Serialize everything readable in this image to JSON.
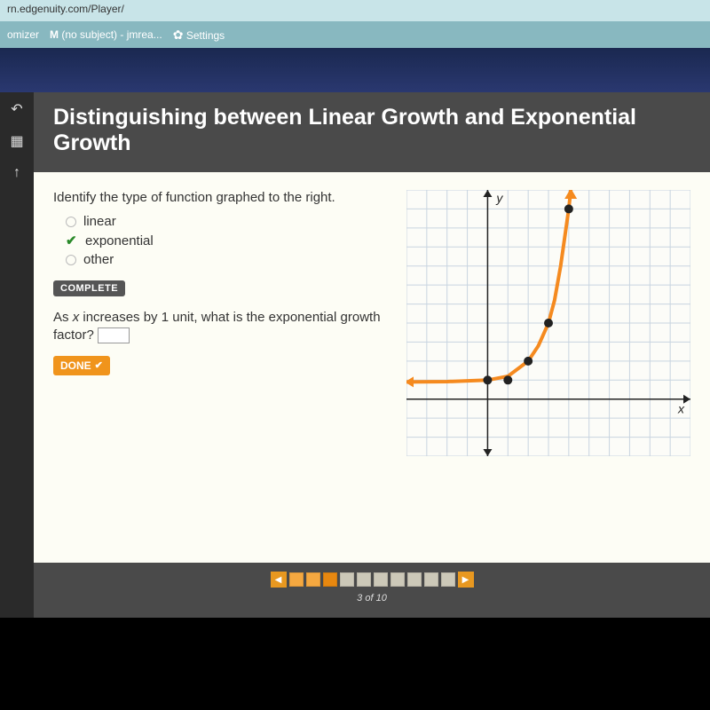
{
  "browser": {
    "url": "rn.edgenuity.com/Player/",
    "tabs": [
      {
        "label": "omizer"
      },
      {
        "icon": "M",
        "label": "(no subject) - jmrea..."
      },
      {
        "icon": "✿",
        "label": "Settings"
      }
    ]
  },
  "rail": {
    "icons": [
      "↶",
      "▦",
      "↑"
    ]
  },
  "lesson": {
    "title": "Distinguishing between Linear Growth and Exponential Growth",
    "prompt": "Identify the type of function graphed to the right.",
    "options": [
      {
        "label": "linear",
        "state": "empty"
      },
      {
        "label": "exponential",
        "state": "correct"
      },
      {
        "label": "other",
        "state": "empty"
      }
    ],
    "complete_badge": "COMPLETE",
    "question2_a": "As ",
    "question2_var": "x",
    "question2_b": " increases by 1 unit, what is the exponential growth factor? ",
    "done_label": "DONE",
    "input_value": ""
  },
  "graph": {
    "type": "scatter-line-exponential",
    "background_color": "#fcfcf8",
    "grid_color": "#c8d4e0",
    "axis_color": "#222222",
    "curve_color": "#f58a1f",
    "curve_width": 4,
    "point_color": "#222222",
    "point_radius": 5,
    "arrow_color_curve": "#f58a1f",
    "x_range": [
      -4,
      10
    ],
    "y_range": [
      -3,
      11
    ],
    "grid_step": 1,
    "y_label": "y",
    "x_label": "x",
    "label_fontstyle": "italic",
    "points": [
      {
        "x": 0,
        "y": 1
      },
      {
        "x": 1,
        "y": 1
      },
      {
        "x": 2,
        "y": 2
      },
      {
        "x": 3,
        "y": 4
      },
      {
        "x": 4,
        "y": 10
      }
    ],
    "curve_samples": [
      {
        "x": -4,
        "y": 0.9
      },
      {
        "x": -2,
        "y": 0.92
      },
      {
        "x": 0,
        "y": 1
      },
      {
        "x": 1,
        "y": 1.2
      },
      {
        "x": 2,
        "y": 2
      },
      {
        "x": 2.5,
        "y": 2.8
      },
      {
        "x": 3,
        "y": 4
      },
      {
        "x": 3.3,
        "y": 5.2
      },
      {
        "x": 3.6,
        "y": 7
      },
      {
        "x": 4,
        "y": 10
      },
      {
        "x": 4.1,
        "y": 11
      }
    ]
  },
  "pager": {
    "total": 10,
    "current": 3,
    "completed": [
      1,
      2
    ],
    "label": "3 of 10",
    "prev": "◀",
    "next": "▶"
  }
}
